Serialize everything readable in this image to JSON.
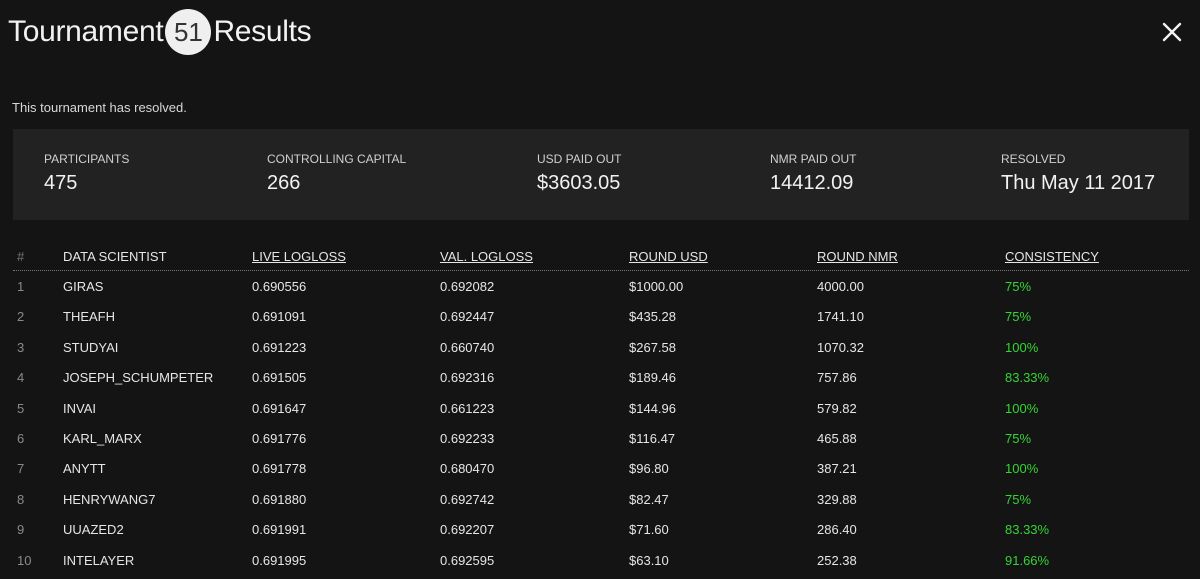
{
  "header": {
    "title_prefix": "Tournament",
    "tournament_number": "51",
    "title_suffix": "Results"
  },
  "status_message": "This tournament has resolved.",
  "stats": [
    {
      "label": "PARTICIPANTS",
      "value": "475"
    },
    {
      "label": "CONTROLLING CAPITAL",
      "value": "266"
    },
    {
      "label": "USD PAID OUT",
      "value": "$3603.05"
    },
    {
      "label": "NMR PAID OUT",
      "value": "14412.09"
    },
    {
      "label": "RESOLVED",
      "value": "Thu May 11 2017"
    }
  ],
  "table": {
    "columns": [
      "#",
      "DATA SCIENTIST",
      "LIVE LOGLOSS",
      "VAL. LOGLOSS",
      "ROUND USD",
      "ROUND NMR",
      "CONSISTENCY"
    ],
    "rows": [
      {
        "rank": "1",
        "name": "GIRAS",
        "live": "0.690556",
        "val": "0.692082",
        "usd": "$1000.00",
        "nmr": "4000.00",
        "consistency": "75%"
      },
      {
        "rank": "2",
        "name": "THEAFH",
        "live": "0.691091",
        "val": "0.692447",
        "usd": "$435.28",
        "nmr": "1741.10",
        "consistency": "75%"
      },
      {
        "rank": "3",
        "name": "STUDYAI",
        "live": "0.691223",
        "val": "0.660740",
        "usd": "$267.58",
        "nmr": "1070.32",
        "consistency": "100%"
      },
      {
        "rank": "4",
        "name": "JOSEPH_SCHUMPETER",
        "live": "0.691505",
        "val": "0.692316",
        "usd": "$189.46",
        "nmr": "757.86",
        "consistency": "83.33%"
      },
      {
        "rank": "5",
        "name": "INVAI",
        "live": "0.691647",
        "val": "0.661223",
        "usd": "$144.96",
        "nmr": "579.82",
        "consistency": "100%"
      },
      {
        "rank": "6",
        "name": "KARL_MARX",
        "live": "0.691776",
        "val": "0.692233",
        "usd": "$116.47",
        "nmr": "465.88",
        "consistency": "75%"
      },
      {
        "rank": "7",
        "name": "ANYTT",
        "live": "0.691778",
        "val": "0.680470",
        "usd": "$96.80",
        "nmr": "387.21",
        "consistency": "100%"
      },
      {
        "rank": "8",
        "name": "HENRYWANG7",
        "live": "0.691880",
        "val": "0.692742",
        "usd": "$82.47",
        "nmr": "329.88",
        "consistency": "75%"
      },
      {
        "rank": "9",
        "name": "UUAZED2",
        "live": "0.691991",
        "val": "0.692207",
        "usd": "$71.60",
        "nmr": "286.40",
        "consistency": "83.33%"
      },
      {
        "rank": "10",
        "name": "INTELAYER",
        "live": "0.691995",
        "val": "0.692595",
        "usd": "$63.10",
        "nmr": "252.38",
        "consistency": "91.66%"
      }
    ]
  },
  "colors": {
    "background": "#141414",
    "panel": "#222222",
    "consistency_green": "#35d435"
  },
  "icons": {
    "close": "close-icon"
  }
}
